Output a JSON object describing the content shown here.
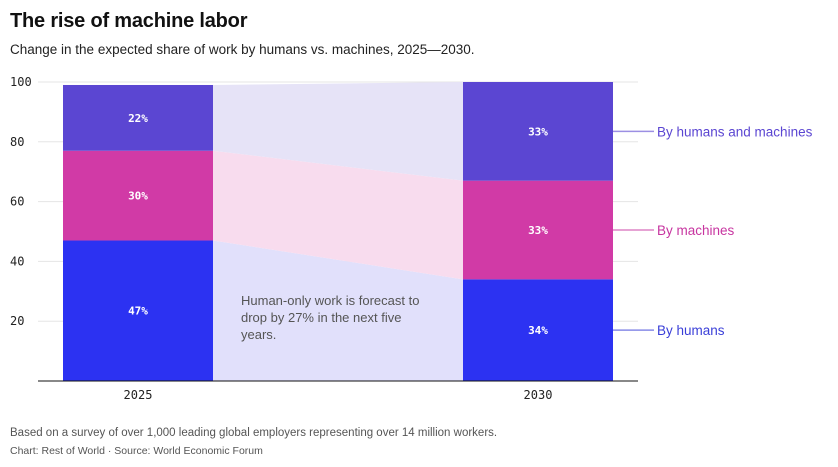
{
  "header": {
    "title": "The rise of machine labor",
    "subtitle": "Change in the expected share of work by humans vs. machines, 2025—2030."
  },
  "chart_data": {
    "type": "bar",
    "stacked": true,
    "categories": [
      "2025",
      "2030"
    ],
    "series": [
      {
        "name": "By humans",
        "values": [
          47,
          34
        ],
        "labels": [
          "47%",
          "34%"
        ],
        "color": "#2c32f2",
        "band_color": "#e1e0fb",
        "legend_color": "#3a3fd8"
      },
      {
        "name": "By machines",
        "values": [
          30,
          33
        ],
        "labels": [
          "30%",
          "33%"
        ],
        "color": "#d13aa6",
        "band_color": "#f8dcee",
        "legend_color": "#c735a0"
      },
      {
        "name": "By humans and machines",
        "values": [
          22,
          33
        ],
        "labels": [
          "22%",
          "33%"
        ],
        "color": "#5b46d2",
        "band_color": "#e6e3f7",
        "legend_color": "#5b46d2"
      }
    ],
    "ylim": [
      0,
      100
    ],
    "yticks": [
      20,
      40,
      60,
      80,
      100
    ],
    "xlabel": "",
    "ylabel": "",
    "annotation": "Human-only work is forecast to drop by 27% in the next five years.",
    "legend_placement": "right"
  },
  "footer": {
    "note": "Based on a survey of over 1,000 leading global employers representing over 14 million workers.",
    "credit": "Chart: Rest of World",
    "separator": "·",
    "source": "Source: World Economic Forum"
  },
  "colors": {
    "grid": "#e5e5e5",
    "axis": "#111111",
    "tick_text": "#222222"
  }
}
